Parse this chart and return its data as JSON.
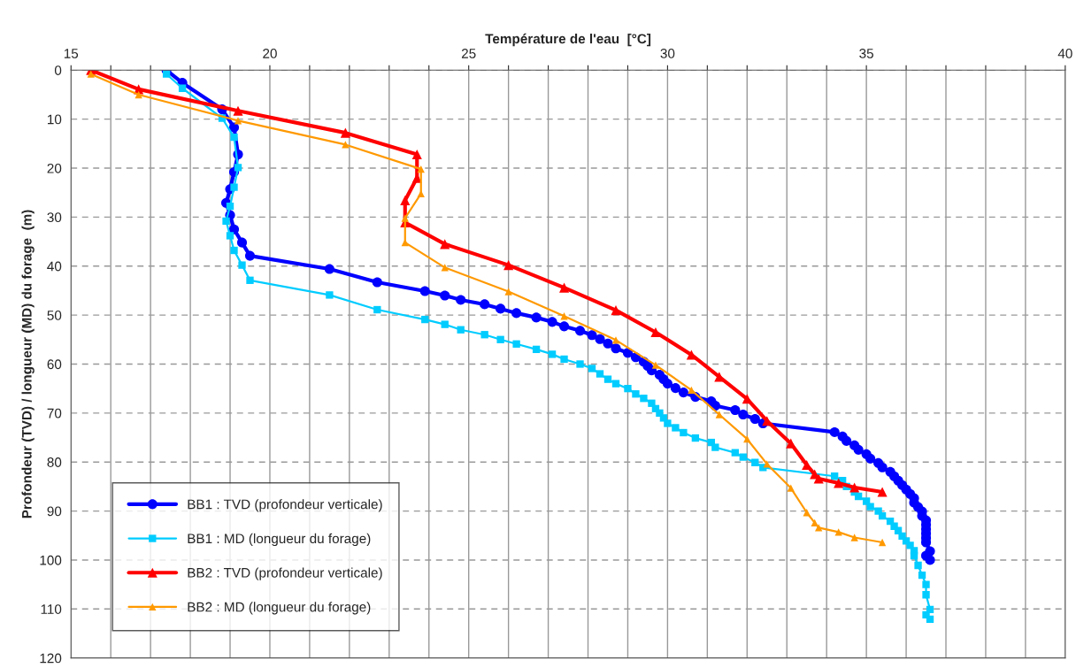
{
  "chart_data": {
    "type": "line",
    "xlabel": "Température de l'eau  [°C]",
    "ylabel": "Profondeur (TVD) / longueur (MD) du forage  (m)",
    "xlim": [
      15,
      40
    ],
    "ylim": [
      120,
      0
    ],
    "xticks": [
      15,
      {
        "value": 16,
        "label": null
      },
      {
        "value": 17,
        "label": null
      },
      {
        "value": 18,
        "label": null
      },
      {
        "value": 19,
        "label": null
      },
      20,
      {
        "value": 21,
        "label": null
      },
      {
        "value": 22,
        "label": null
      },
      {
        "value": 23,
        "label": null
      },
      {
        "value": 24,
        "label": null
      },
      25,
      {
        "value": 26,
        "label": null
      },
      {
        "value": 27,
        "label": null
      },
      {
        "value": 28,
        "label": null
      },
      {
        "value": 29,
        "label": null
      },
      30,
      {
        "value": 31,
        "label": null
      },
      {
        "value": 32,
        "label": null
      },
      {
        "value": 33,
        "label": null
      },
      {
        "value": 34,
        "label": null
      },
      35,
      {
        "value": 36,
        "label": null
      },
      {
        "value": 37,
        "label": null
      },
      {
        "value": 38,
        "label": null
      },
      {
        "value": 39,
        "label": null
      },
      40
    ],
    "yticks": [
      0,
      10,
      20,
      30,
      40,
      50,
      60,
      70,
      80,
      90,
      100,
      110,
      120
    ],
    "grid": true,
    "legend": "bottom left",
    "series": [
      {
        "name": "BB1 : TVD (profondeur verticale)",
        "color": "#0000ff",
        "marker": "circle",
        "x": [
          17.4,
          17.8,
          18.8,
          19.1,
          19.2,
          19.1,
          19.0,
          18.9,
          19.0,
          19.1,
          19.3,
          19.5,
          21.5,
          22.7,
          23.9,
          24.4,
          24.8,
          25.4,
          25.8,
          26.2,
          26.7,
          27.1,
          27.4,
          27.8,
          28.1,
          28.3,
          28.5,
          28.7,
          29.0,
          29.2,
          29.4,
          29.5,
          29.6,
          29.8,
          29.9,
          30.0,
          30.2,
          30.4,
          30.7,
          31.1,
          31.2,
          31.7,
          31.9,
          32.2,
          32.4,
          34.2,
          34.4,
          34.5,
          34.7,
          34.8,
          35.0,
          35.1,
          35.3,
          35.4,
          35.6,
          35.7,
          35.8,
          35.9,
          36.0,
          36.1,
          36.2,
          36.2,
          36.3,
          36.4,
          36.4,
          36.5,
          36.5,
          36.5,
          36.5,
          36.5,
          36.5,
          36.6,
          36.5,
          36.6
        ],
        "values": [
          0,
          2.6,
          8.0,
          11.7,
          17.2,
          20.8,
          24.3,
          27.1,
          29.6,
          32.5,
          35.2,
          37.9,
          40.6,
          43.3,
          45.1,
          46.0,
          46.9,
          47.8,
          48.7,
          49.6,
          50.5,
          51.4,
          52.3,
          53.2,
          54.1,
          54.9,
          55.8,
          56.8,
          57.7,
          58.6,
          59.5,
          60.4,
          61.3,
          62.2,
          63.1,
          64.0,
          64.9,
          65.8,
          66.7,
          67.6,
          68.5,
          69.4,
          70.3,
          71.2,
          72.1,
          73.9,
          74.8,
          75.7,
          76.6,
          77.5,
          78.4,
          79.3,
          80.2,
          81.1,
          82.0,
          82.9,
          83.8,
          84.7,
          85.6,
          86.5,
          87.4,
          88.3,
          89.2,
          90.1,
          91.0,
          91.9,
          92.8,
          93.7,
          94.6,
          95.5,
          96.4,
          98.2,
          99.1,
          100.0
        ]
      },
      {
        "name": "BB1 : MD (longueur du forage)",
        "color": "#00ccff",
        "marker": "square",
        "x": [
          17.4,
          17.8,
          18.8,
          19.1,
          19.2,
          19.1,
          19.0,
          18.9,
          19.0,
          19.1,
          19.3,
          19.5,
          21.5,
          22.7,
          23.9,
          24.4,
          24.8,
          25.4,
          25.8,
          26.2,
          26.7,
          27.1,
          27.4,
          27.8,
          28.1,
          28.3,
          28.5,
          28.7,
          29.0,
          29.2,
          29.4,
          29.6,
          29.7,
          29.8,
          29.9,
          30.0,
          30.2,
          30.4,
          30.7,
          31.1,
          31.2,
          31.7,
          31.9,
          32.2,
          32.4,
          34.2,
          34.4,
          34.5,
          34.7,
          34.8,
          35.0,
          35.1,
          35.3,
          35.4,
          35.6,
          35.7,
          35.8,
          35.9,
          36.0,
          36.1,
          36.2,
          36.2,
          36.3,
          36.4,
          36.5,
          36.5,
          36.6,
          36.5,
          36.6
        ],
        "values": [
          0.8,
          3.7,
          9.8,
          13.7,
          19.9,
          23.9,
          27.8,
          30.8,
          33.8,
          36.8,
          39.8,
          42.9,
          45.9,
          48.9,
          50.9,
          51.9,
          53.0,
          54.0,
          55.0,
          55.9,
          57.0,
          58.0,
          59.0,
          60.0,
          60.9,
          62.0,
          63.1,
          64.0,
          65.0,
          66.1,
          67.0,
          68.0,
          69.1,
          70.0,
          71.0,
          72.1,
          73.0,
          74.0,
          75.1,
          76.0,
          77.0,
          78.1,
          79.0,
          80.1,
          81.1,
          82.9,
          83.8,
          85.0,
          86.1,
          87.0,
          88.0,
          89.1,
          90.0,
          91.0,
          92.1,
          93.1,
          94.0,
          95.1,
          96.1,
          97.0,
          98.1,
          99.1,
          101.1,
          103.1,
          105.0,
          107.1,
          110.1,
          111.2,
          112.1
        ]
      },
      {
        "name": "BB2 : TVD (profondeur verticale)",
        "color": "#ff0000",
        "marker": "triangle",
        "x": [
          15.5,
          16.7,
          19.2,
          21.9,
          23.7,
          23.7,
          23.4,
          23.4,
          24.4,
          26.0,
          27.4,
          28.7,
          29.7,
          30.6,
          31.3,
          32.0,
          32.5,
          33.1,
          33.5,
          33.7,
          33.8,
          34.3,
          34.7,
          35.4
        ],
        "values": [
          0,
          3.9,
          8.3,
          12.8,
          17.2,
          22.0,
          26.6,
          31.1,
          35.5,
          39.8,
          44.4,
          49.0,
          53.5,
          58.1,
          62.6,
          67.1,
          71.6,
          76.2,
          80.6,
          82.5,
          83.4,
          84.3,
          85.2,
          86.1
        ]
      },
      {
        "name": "BB2 : MD (longueur du forage)",
        "color": "#ff9900",
        "marker": "triangle",
        "x": [
          15.5,
          16.7,
          19.2,
          21.9,
          23.8,
          23.8,
          23.4,
          23.4,
          24.4,
          26.0,
          27.4,
          28.7,
          29.7,
          30.6,
          31.3,
          32.0,
          32.5,
          33.1,
          33.5,
          33.7,
          33.8,
          34.3,
          34.7,
          35.4
        ],
        "values": [
          0.8,
          5.0,
          10.3,
          15.2,
          20.2,
          25.2,
          30.2,
          35.2,
          40.3,
          45.2,
          50.2,
          55.1,
          60.2,
          65.3,
          70.3,
          75.3,
          80.4,
          85.3,
          90.3,
          92.4,
          93.4,
          94.3,
          95.4,
          96.4
        ]
      }
    ]
  }
}
